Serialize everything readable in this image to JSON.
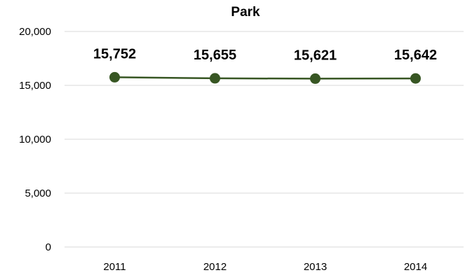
{
  "chart_data": {
    "type": "line",
    "title": "Park",
    "xlabel": "",
    "ylabel": "",
    "categories": [
      "2011",
      "2012",
      "2013",
      "2014"
    ],
    "series": [
      {
        "values": [
          15752,
          15655,
          15621,
          15642
        ],
        "data_labels": [
          "15,752",
          "15,655",
          "15,621",
          "15,642"
        ],
        "color": "#375623"
      }
    ],
    "ylim": [
      0,
      20000
    ],
    "y_ticks": [
      0,
      5000,
      10000,
      15000,
      20000
    ],
    "y_tick_labels": [
      "0",
      "5,000",
      "10,000",
      "15,000",
      "20,000"
    ],
    "grid": true,
    "gridline_color": "#d9d9d9",
    "legend": "none"
  }
}
